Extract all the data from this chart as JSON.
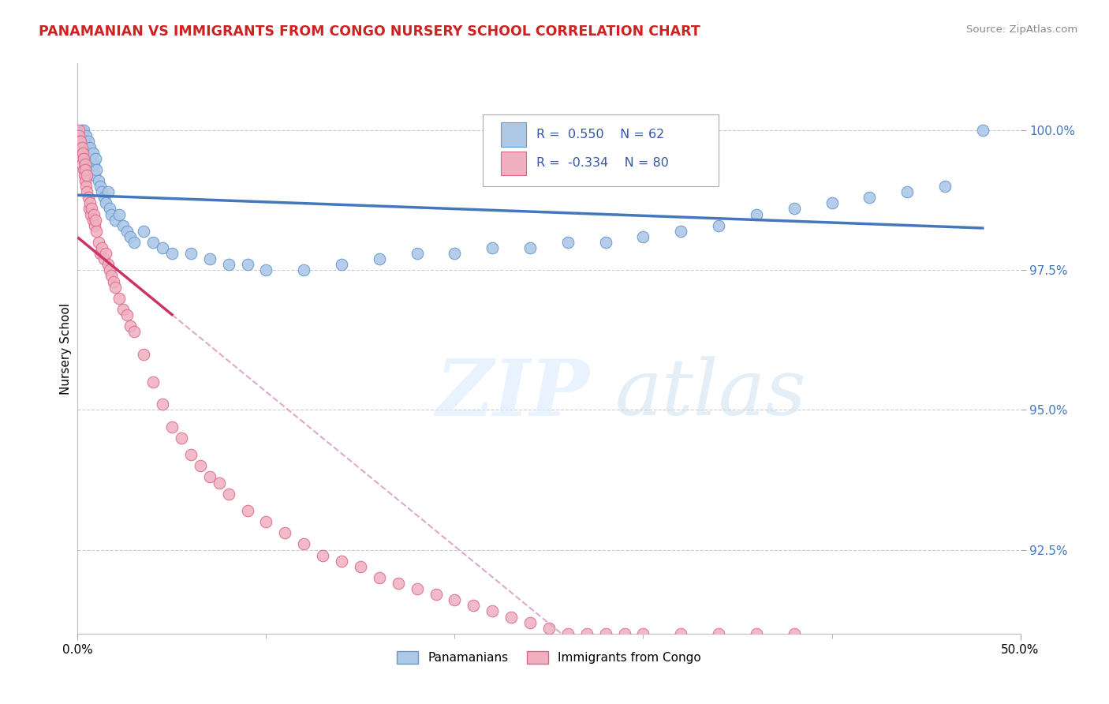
{
  "title": "PANAMANIAN VS IMMIGRANTS FROM CONGO NURSERY SCHOOL CORRELATION CHART",
  "source": "Source: ZipAtlas.com",
  "ylabel": "Nursery School",
  "legend_labels": [
    "Panamanians",
    "Immigrants from Congo"
  ],
  "legend_r": [
    0.55,
    -0.334
  ],
  "legend_n": [
    62,
    80
  ],
  "blue_color": "#aec8e8",
  "pink_color": "#f0b0c0",
  "blue_edge_color": "#6699cc",
  "pink_edge_color": "#dd6688",
  "blue_line_color": "#4477bb",
  "pink_line_color": "#cc3366",
  "dashed_line_color": "#ddaacc",
  "xlim": [
    0.0,
    50.0
  ],
  "ylim": [
    91.0,
    101.2
  ],
  "yticks": [
    92.5,
    95.0,
    97.5,
    100.0
  ],
  "blue_scatter_x": [
    0.1,
    0.15,
    0.2,
    0.25,
    0.3,
    0.35,
    0.4,
    0.45,
    0.5,
    0.55,
    0.6,
    0.65,
    0.7,
    0.75,
    0.8,
    0.85,
    0.9,
    0.95,
    1.0,
    1.1,
    1.2,
    1.3,
    1.4,
    1.5,
    1.6,
    1.7,
    1.8,
    2.0,
    2.2,
    2.4,
    2.6,
    2.8,
    3.0,
    3.5,
    4.0,
    4.5,
    5.0,
    6.0,
    7.0,
    8.0,
    9.0,
    10.0,
    12.0,
    14.0,
    16.0,
    18.0,
    20.0,
    22.0,
    24.0,
    26.0,
    28.0,
    30.0,
    32.0,
    34.0,
    36.0,
    38.0,
    40.0,
    42.0,
    44.0,
    46.0,
    48.0,
    28.5
  ],
  "blue_scatter_y": [
    99.8,
    99.9,
    100.0,
    99.7,
    100.0,
    99.8,
    99.5,
    99.9,
    99.6,
    99.8,
    99.4,
    99.7,
    99.5,
    99.3,
    99.6,
    99.4,
    99.2,
    99.5,
    99.3,
    99.1,
    99.0,
    98.9,
    98.8,
    98.7,
    98.9,
    98.6,
    98.5,
    98.4,
    98.5,
    98.3,
    98.2,
    98.1,
    98.0,
    98.2,
    98.0,
    97.9,
    97.8,
    97.8,
    97.7,
    97.6,
    97.6,
    97.5,
    97.5,
    97.6,
    97.7,
    97.8,
    97.8,
    97.9,
    97.9,
    98.0,
    98.0,
    98.1,
    98.2,
    98.3,
    98.5,
    98.6,
    98.7,
    98.8,
    98.9,
    99.0,
    100.0,
    99.5
  ],
  "pink_scatter_x": [
    0.05,
    0.08,
    0.1,
    0.12,
    0.15,
    0.18,
    0.2,
    0.22,
    0.25,
    0.28,
    0.3,
    0.32,
    0.35,
    0.38,
    0.4,
    0.42,
    0.45,
    0.48,
    0.5,
    0.55,
    0.6,
    0.65,
    0.7,
    0.75,
    0.8,
    0.85,
    0.9,
    0.95,
    1.0,
    1.1,
    1.2,
    1.3,
    1.4,
    1.5,
    1.6,
    1.7,
    1.8,
    1.9,
    2.0,
    2.2,
    2.4,
    2.6,
    2.8,
    3.0,
    3.5,
    4.0,
    4.5,
    5.0,
    5.5,
    6.0,
    6.5,
    7.0,
    7.5,
    8.0,
    9.0,
    10.0,
    11.0,
    12.0,
    13.0,
    14.0,
    15.0,
    16.0,
    17.0,
    18.0,
    19.0,
    20.0,
    21.0,
    22.0,
    23.0,
    24.0,
    25.0,
    26.0,
    27.0,
    28.0,
    29.0,
    30.0,
    32.0,
    34.0,
    36.0,
    38.0
  ],
  "pink_scatter_y": [
    100.0,
    99.9,
    99.8,
    99.7,
    99.8,
    99.6,
    99.5,
    99.7,
    99.4,
    99.6,
    99.3,
    99.5,
    99.2,
    99.4,
    99.1,
    99.3,
    99.0,
    99.2,
    98.9,
    98.8,
    98.6,
    98.7,
    98.5,
    98.6,
    98.4,
    98.5,
    98.3,
    98.4,
    98.2,
    98.0,
    97.8,
    97.9,
    97.7,
    97.8,
    97.6,
    97.5,
    97.4,
    97.3,
    97.2,
    97.0,
    96.8,
    96.7,
    96.5,
    96.4,
    96.0,
    95.5,
    95.1,
    94.7,
    94.5,
    94.2,
    94.0,
    93.8,
    93.7,
    93.5,
    93.2,
    93.0,
    92.8,
    92.6,
    92.4,
    92.3,
    92.2,
    92.0,
    91.9,
    91.8,
    91.7,
    91.6,
    91.5,
    91.4,
    91.3,
    91.2,
    91.1,
    91.0,
    91.0,
    91.0,
    91.0,
    91.0,
    91.0,
    91.0,
    91.0,
    91.0
  ],
  "pink_solid_end_x": 5.0,
  "pink_dashed_end_x": 32.0,
  "blue_line_x_start": 0.05,
  "blue_line_x_end": 48.0
}
